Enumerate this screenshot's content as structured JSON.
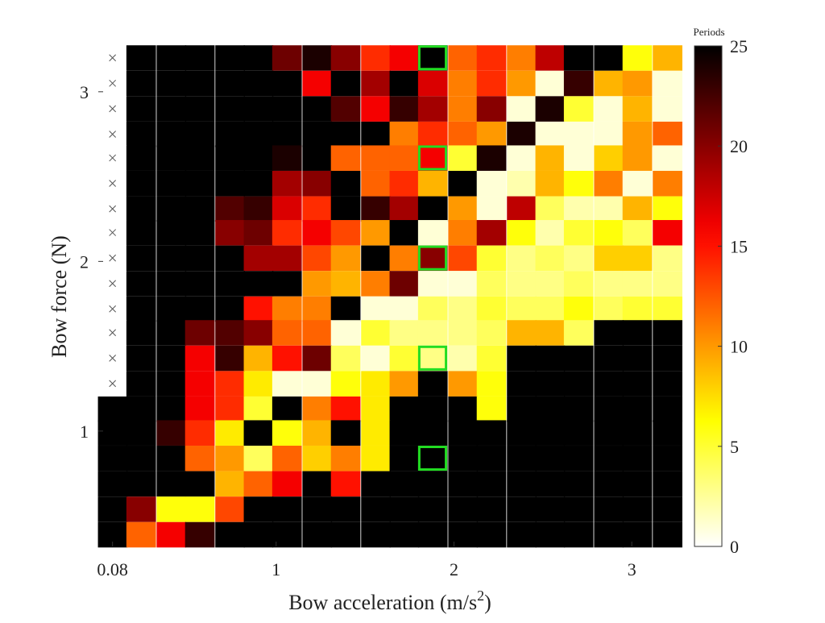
{
  "chart_data": {
    "type": "heatmap",
    "x_label": "Bow acceleration (m/s",
    "x_label_sup": "2",
    "x_label_end": ")",
    "y_label": "Bow force (N)",
    "colorbar_label": "Periods",
    "x": [
      0.08,
      0.24,
      0.41,
      0.57,
      0.74,
      0.9,
      1.06,
      1.23,
      1.39,
      1.56,
      1.72,
      1.88,
      2.05,
      2.21,
      2.38,
      2.54,
      2.7,
      2.87,
      3.03,
      3.2
    ],
    "y": [
      3.2,
      3.05,
      2.9,
      2.75,
      2.61,
      2.46,
      2.31,
      2.17,
      2.02,
      1.87,
      1.72,
      1.58,
      1.43,
      1.28,
      1.13,
      0.99,
      0.84,
      0.69,
      0.54,
      0.39
    ],
    "z": [
      [
        null,
        25,
        25,
        25,
        25,
        25,
        21,
        24,
        20,
        14,
        16,
        25,
        12,
        14,
        11,
        18,
        25,
        25,
        6,
        9
      ],
      [
        null,
        25,
        25,
        25,
        25,
        25,
        25,
        16,
        25,
        19,
        25,
        17,
        11,
        14,
        10,
        1,
        23,
        9,
        10,
        1
      ],
      [
        null,
        25,
        25,
        25,
        25,
        25,
        25,
        25,
        22,
        16,
        23,
        19,
        11,
        20,
        1,
        24,
        5,
        1,
        9,
        1
      ],
      [
        null,
        25,
        25,
        25,
        25,
        25,
        25,
        25,
        25,
        25,
        11,
        14,
        12,
        10,
        24,
        1,
        1,
        1,
        10,
        12
      ],
      [
        null,
        25,
        25,
        25,
        25,
        25,
        24,
        25,
        12,
        12,
        12,
        16,
        5,
        24,
        1,
        9,
        1,
        8,
        10,
        1
      ],
      [
        null,
        25,
        25,
        25,
        25,
        25,
        19,
        20,
        25,
        12,
        14,
        9,
        25,
        1,
        2,
        9,
        6,
        11,
        1,
        11
      ],
      [
        null,
        25,
        25,
        25,
        22,
        23,
        17,
        14,
        25,
        23,
        19,
        25,
        10,
        1,
        18,
        4,
        2,
        2,
        9,
        6
      ],
      [
        null,
        25,
        25,
        25,
        20,
        21,
        14,
        16,
        13,
        10,
        25,
        1,
        11,
        19,
        6,
        2,
        5,
        6,
        4,
        16
      ],
      [
        null,
        25,
        25,
        25,
        25,
        19,
        19,
        13,
        10,
        25,
        11,
        20,
        13,
        5,
        3,
        4,
        3,
        8,
        8,
        3
      ],
      [
        null,
        25,
        25,
        25,
        25,
        25,
        25,
        10,
        9,
        11,
        21,
        1,
        1,
        4,
        3,
        3,
        4,
        3,
        3,
        3
      ],
      [
        null,
        25,
        25,
        25,
        25,
        15,
        11,
        11,
        25,
        1,
        1,
        4,
        3,
        5,
        4,
        4,
        6,
        4,
        5,
        5
      ],
      [
        null,
        25,
        25,
        21,
        22,
        20,
        12,
        12,
        1,
        5,
        3,
        3,
        3,
        4,
        9,
        9,
        4,
        25,
        25,
        25
      ],
      [
        null,
        25,
        25,
        16,
        23,
        9,
        15,
        21,
        4,
        1,
        5,
        3,
        2,
        5,
        25,
        25,
        25,
        25,
        25,
        25
      ],
      [
        null,
        25,
        25,
        16,
        14,
        7,
        1,
        1,
        6,
        7,
        10,
        25,
        10,
        6,
        25,
        25,
        25,
        25,
        25,
        25
      ],
      [
        25,
        25,
        25,
        16,
        14,
        5,
        25,
        11,
        15,
        7,
        25,
        25,
        25,
        6,
        25,
        25,
        25,
        25,
        25,
        25
      ],
      [
        25,
        25,
        23,
        14,
        7,
        25,
        6,
        9,
        25,
        7,
        25,
        25,
        25,
        25,
        25,
        25,
        25,
        25,
        25,
        25
      ],
      [
        25,
        25,
        25,
        12,
        10,
        4,
        12,
        8,
        11,
        7,
        25,
        25,
        25,
        25,
        25,
        25,
        25,
        25,
        25,
        25
      ],
      [
        25,
        25,
        25,
        25,
        9,
        12,
        16,
        25,
        15,
        25,
        25,
        25,
        25,
        25,
        25,
        25,
        25,
        25,
        25,
        25
      ],
      [
        25,
        20,
        6,
        6,
        13,
        25,
        25,
        25,
        25,
        25,
        25,
        25,
        25,
        25,
        25,
        25,
        25,
        25,
        25,
        25
      ],
      [
        25,
        12,
        16,
        23,
        25,
        25,
        25,
        25,
        25,
        25,
        25,
        25,
        25,
        25,
        25,
        25,
        25,
        25,
        25,
        25
      ]
    ],
    "colormap": "hot_reversed",
    "xlim": [
      0,
      3.28
    ],
    "ylim": [
      0.32,
      3.27
    ],
    "xticks": [
      0.08,
      1,
      2,
      3
    ],
    "yticks": [
      1,
      2,
      3
    ],
    "clim": [
      0,
      25
    ],
    "cticks": [
      0,
      5,
      10,
      15,
      20,
      25
    ],
    "highlight_color": "#22dd22"
  }
}
